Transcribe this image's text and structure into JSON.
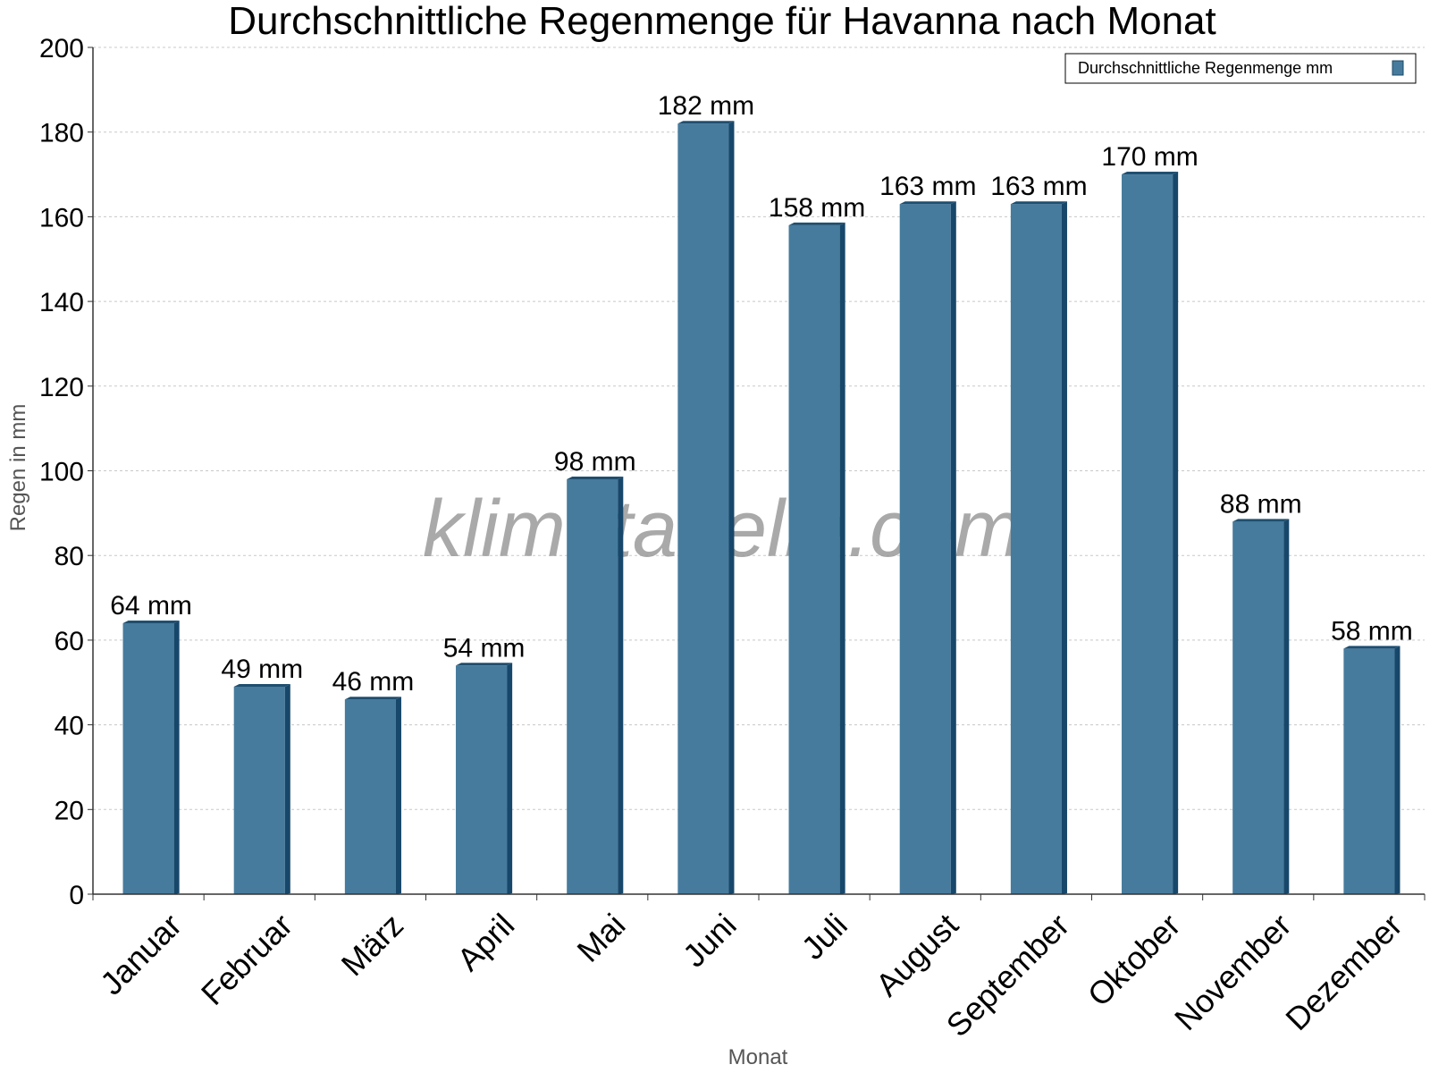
{
  "chart_data": {
    "type": "bar",
    "title": "Durchschnittliche Regenmenge für Havanna nach Monat",
    "xlabel": "Monat",
    "ylabel": "Regen in mm",
    "ylim": [
      0,
      200
    ],
    "yticks": [
      0,
      20,
      40,
      60,
      80,
      100,
      120,
      140,
      160,
      180,
      200
    ],
    "grid": true,
    "legend_position": "top-right",
    "categories": [
      "Januar",
      "Februar",
      "März",
      "April",
      "Mai",
      "Juni",
      "Juli",
      "August",
      "September",
      "Oktober",
      "November",
      "Dezember"
    ],
    "series": [
      {
        "name": "Durchschnittliche Regenmenge mm",
        "color": "#467b9d",
        "values": [
          64,
          49,
          46,
          54,
          98,
          182,
          158,
          163,
          163,
          170,
          88,
          58
        ],
        "labels": [
          "64 mm",
          "49 mm",
          "46 mm",
          "54 mm",
          "98 mm",
          "182 mm",
          "158 mm",
          "163 mm",
          "163 mm",
          "170 mm",
          "88 mm",
          "58 mm"
        ]
      }
    ],
    "watermark": "klimatabelle.com"
  }
}
